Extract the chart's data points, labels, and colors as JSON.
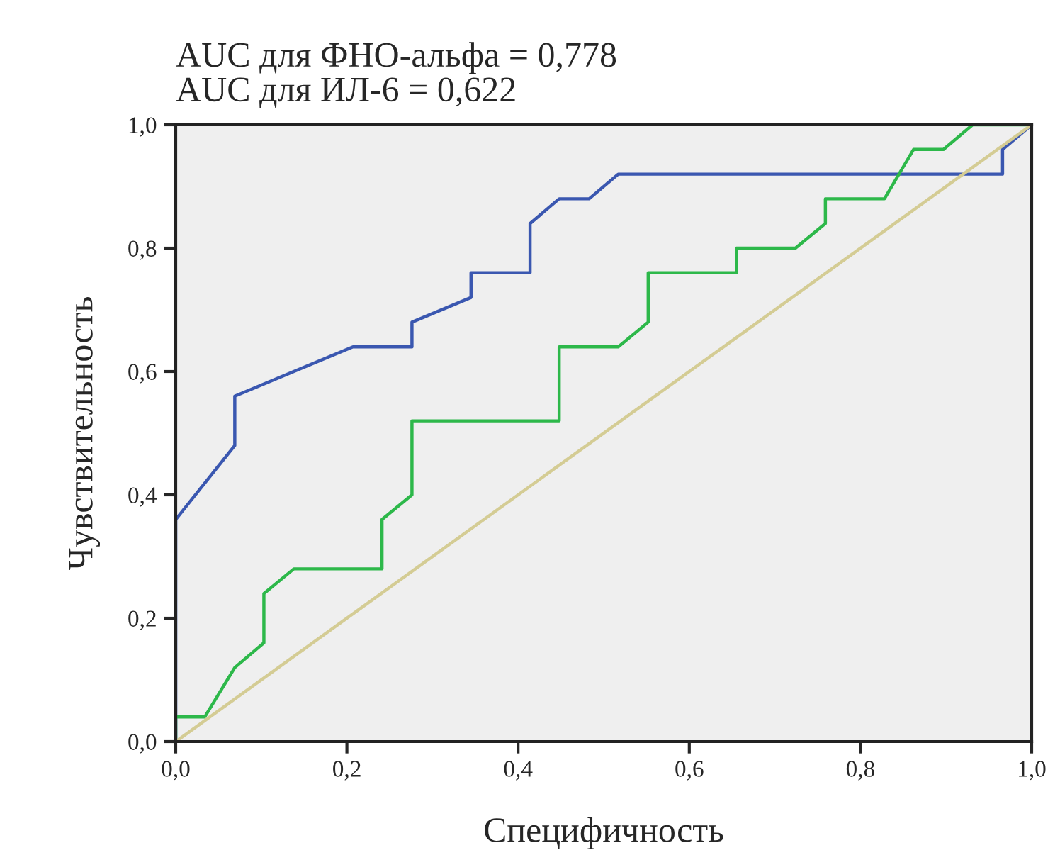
{
  "chart_data": {
    "type": "line",
    "title": "AUC для ФНО-альфа = 0,778\nAUC для ИЛ-6 = 0,622",
    "xlabel": "Специфичность",
    "ylabel": "Чувствительность",
    "series": [
      {
        "color": "#3a57b0",
        "x": [
          0,
          0,
          0.069,
          0.069,
          0.207,
          0.276,
          0.276,
          0.345,
          0.345,
          0.414,
          0.414,
          0.448,
          0.483,
          0.517,
          0.966,
          0.966,
          1
        ],
        "values": [
          0,
          0.36,
          0.48,
          0.56,
          0.64,
          0.64,
          0.68,
          0.72,
          0.76,
          0.76,
          0.84,
          0.88,
          0.88,
          0.92,
          0.92,
          0.96,
          1
        ]
      },
      {
        "color": "#2db84a",
        "x": [
          0,
          0,
          0.034,
          0.069,
          0.103,
          0.103,
          0.138,
          0.241,
          0.241,
          0.276,
          0.276,
          0.448,
          0.448,
          0.517,
          0.552,
          0.552,
          0.655,
          0.655,
          0.724,
          0.759,
          0.759,
          0.828,
          0.862,
          0.897,
          0.931,
          1
        ],
        "values": [
          0,
          0.04,
          0.04,
          0.12,
          0.16,
          0.24,
          0.28,
          0.28,
          0.36,
          0.4,
          0.52,
          0.52,
          0.64,
          0.64,
          0.68,
          0.76,
          0.76,
          0.8,
          0.8,
          0.84,
          0.88,
          0.88,
          0.96,
          0.96,
          1,
          1
        ]
      },
      {
        "color": "#d4cc94",
        "x": [
          0,
          1
        ],
        "values": [
          0,
          1
        ]
      }
    ],
    "xlim": [
      0,
      1
    ],
    "ylim": [
      0,
      1
    ],
    "xticks": [
      {
        "value": 0,
        "label": "0,0"
      },
      {
        "value": 0.2,
        "label": "0,2"
      },
      {
        "value": 0.4,
        "label": "0,4"
      },
      {
        "value": 0.6,
        "label": "0,6"
      },
      {
        "value": 0.8,
        "label": "0,8"
      },
      {
        "value": 1,
        "label": "1,0"
      }
    ],
    "yticks": [
      {
        "value": 0,
        "label": "0,0"
      },
      {
        "value": 0.2,
        "label": "0,2"
      },
      {
        "value": 0.4,
        "label": "0,4"
      },
      {
        "value": 0.6,
        "label": "0,6"
      },
      {
        "value": 0.8,
        "label": "0,8"
      },
      {
        "value": 1,
        "label": "1,0"
      }
    ],
    "grid": false,
    "marker": "none",
    "line_style": "solid"
  }
}
